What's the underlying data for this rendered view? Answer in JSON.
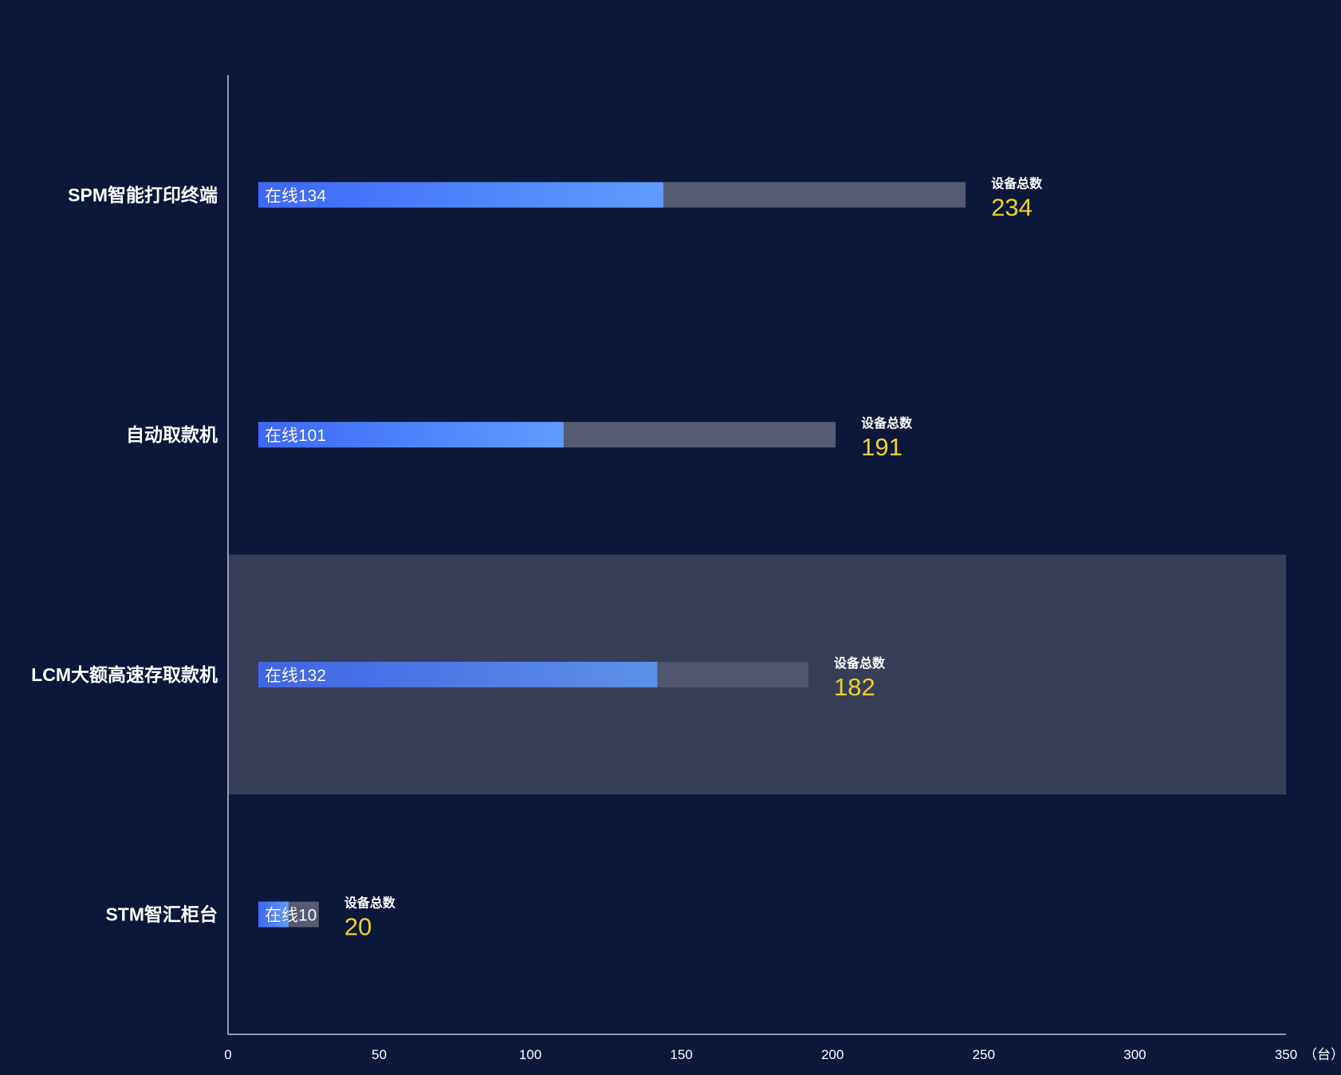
{
  "chart_data": {
    "type": "bar",
    "orientation": "horizontal",
    "categories": [
      "SPM智能打印终端",
      "自动取款机",
      "LCM大额高速存取款机",
      "STM智汇柜台"
    ],
    "series": [
      {
        "name": "在线",
        "values": [
          134,
          101,
          132,
          10
        ]
      },
      {
        "name": "设备总数",
        "values": [
          234,
          191,
          182,
          20
        ]
      }
    ],
    "online_prefix": "在线",
    "total_caption": "设备总数",
    "x_ticks": [
      0,
      50,
      100,
      150,
      200,
      250,
      300,
      350
    ],
    "xlim": [
      0,
      350
    ],
    "x_unit": "（台）",
    "highlighted_category": "LCM大额高速存取款机",
    "colors": {
      "background": "#0b183a",
      "online_gradient_start": "#3d68fb",
      "online_gradient_end": "#5f9bfc",
      "total_bar": "#545b72",
      "total_value": "#f5d127",
      "axis": "#c3c7d2",
      "highlight_band": "#363e58"
    },
    "grid": false,
    "legend": "none"
  }
}
